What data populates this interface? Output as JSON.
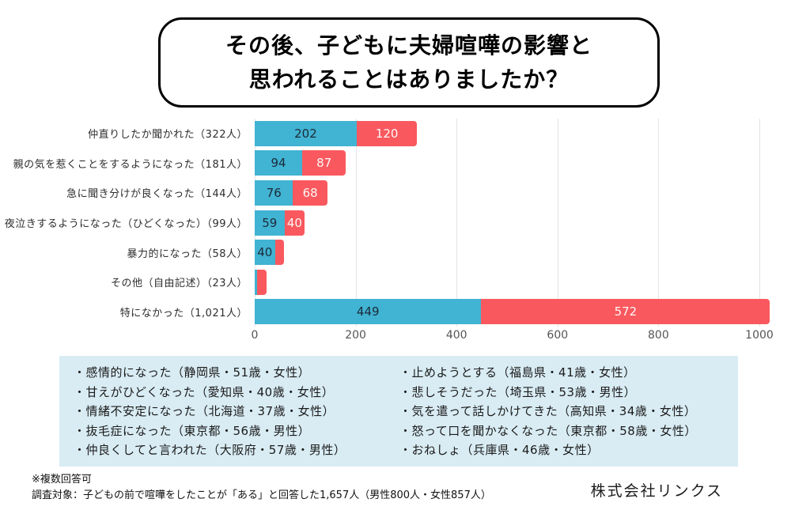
{
  "title": {
    "line1": "その後、子どもに夫婦喧嘩の影響と",
    "line2": "思われることはありましたか？"
  },
  "chart_data": {
    "type": "bar",
    "orientation": "horizontal",
    "stacked": true,
    "xlim": [
      0,
      1000
    ],
    "x_ticks": [
      "0",
      "200",
      "400",
      "600",
      "800",
      "1000"
    ],
    "grid": true,
    "colors": {
      "series1": "#41b3d3",
      "series2": "#f9595e"
    },
    "rows": [
      {
        "category": "仲直りしたか聞かれた（322人）",
        "total": 322,
        "blue": 202,
        "red": 120,
        "blue_label": "202",
        "red_label": "120"
      },
      {
        "category": "親の気を惹くことをするようになった（181人）",
        "total": 181,
        "blue": 94,
        "red": 87,
        "blue_label": "94",
        "red_label": "87"
      },
      {
        "category": "急に聞き分けが良くなった（144人）",
        "total": 144,
        "blue": 76,
        "red": 68,
        "blue_label": "76",
        "red_label": "68"
      },
      {
        "category": "夜泣きするようになった（ひどくなった）（99人）",
        "total": 99,
        "blue": 59,
        "red": 40,
        "blue_label": "59",
        "red_label": "40"
      },
      {
        "category": "暴力的になった（58人）",
        "total": 58,
        "blue": 40,
        "red": 18,
        "blue_label": "40",
        "red_label": ""
      },
      {
        "category": "その他（自由記述）（23人）",
        "total": 23,
        "blue": 5,
        "red": 18,
        "blue_label": "",
        "red_label": ""
      },
      {
        "category": "特になかった（1,021人）",
        "total": 1021,
        "blue": 449,
        "red": 572,
        "blue_label": "449",
        "red_label": "572"
      }
    ]
  },
  "comments_box": {
    "left_column": [
      "・感情的になった（静岡県・51歳・女性）",
      "・甘えがひどくなった（愛知県・40歳・女性）",
      "・情緒不安定になった（北海道・37歳・女性）",
      "・抜毛症になった（東京都・56歳・男性）",
      "・仲良くしてと言われた（大阪府・57歳・男性）"
    ],
    "right_column": [
      "・止めようとする（福島県・41歳・女性）",
      "・悲しそうだった（埼玉県・53歳・男性）",
      "・気を遣って話しかけてきた（高知県・34歳・女性）",
      "・怒って口を聞かなくなった（東京都・58歳・女性）",
      "・おねしょ（兵庫県・46歳・女性）"
    ]
  },
  "footer": {
    "note1": "※複数回答可",
    "note2": "調査対象：子どもの前で喧嘩をしたことが「ある」と回答した1,657人（男性800人・女性857人）",
    "company": "株式会社リンクス"
  }
}
